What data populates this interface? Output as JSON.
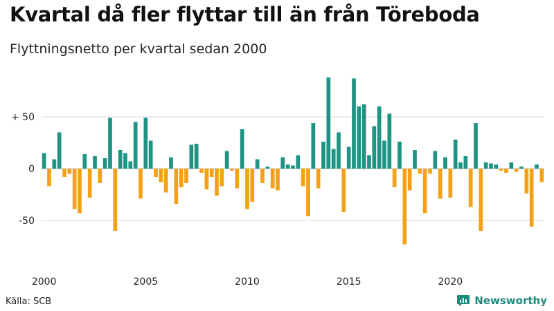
{
  "title": "Kvartal då fler flyttar till än från Töreboda",
  "subtitle": "Flyttningsnetto per kvartal sedan 2000",
  "source": "Källa: SCB",
  "brand": {
    "name": "Newsworthy",
    "icon": "newsworthy-logo-icon"
  },
  "colors": {
    "positive": "#1f9484",
    "negative": "#f4a11a",
    "grid": "#d9d9d9"
  },
  "chart_data": {
    "type": "bar",
    "title": "Kvartal då fler flyttar till än från Töreboda",
    "subtitle": "Flyttningsnetto per kvartal sedan 2000",
    "ylim": [
      -92,
      92
    ],
    "yticks": [
      {
        "value": 50,
        "label": "+ 50"
      },
      {
        "value": 0,
        "label": "0"
      },
      {
        "value": -50,
        "label": "-50"
      }
    ],
    "xticks": [
      {
        "year": 2000,
        "label": "2000"
      },
      {
        "year": 2005,
        "label": "2005"
      },
      {
        "year": 2010,
        "label": "2010"
      },
      {
        "year": 2015,
        "label": "2015"
      },
      {
        "year": 2020,
        "label": "2020"
      }
    ],
    "start_year": 2000,
    "grid": true,
    "legend": "none",
    "values": [
      15,
      -17,
      9,
      35,
      -8,
      -5,
      -39,
      -43,
      14,
      -28,
      12,
      -14,
      10,
      49,
      -60,
      18,
      15,
      7,
      45,
      -29,
      49,
      27,
      -8,
      -13,
      -23,
      11,
      -34,
      -18,
      -14,
      23,
      24,
      -4,
      -20,
      -8,
      -26,
      -17,
      17,
      -2,
      -19,
      38,
      -39,
      -32,
      9,
      -14,
      2,
      -19,
      -21,
      11,
      4,
      3,
      13,
      -17,
      -46,
      44,
      -19,
      26,
      88,
      19,
      35,
      -42,
      21,
      87,
      60,
      62,
      13,
      41,
      60,
      27,
      53,
      -18,
      26,
      -73,
      -21,
      18,
      -5,
      -43,
      -5,
      17,
      -29,
      11,
      -28,
      28,
      6,
      12,
      -37,
      44,
      -60,
      6,
      5,
      4,
      -2,
      -4,
      6,
      -3,
      2,
      -24,
      -56,
      4,
      -13
    ]
  }
}
